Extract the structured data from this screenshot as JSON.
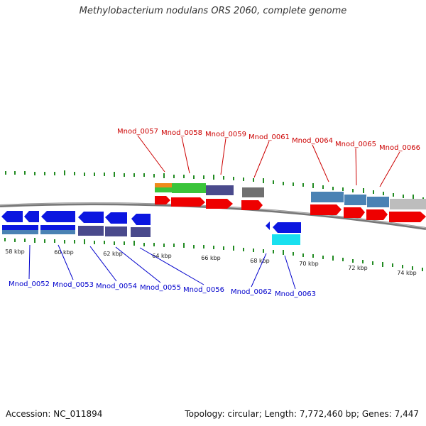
{
  "title": "Methylobacterium nodulans ORS 2060, complete genome",
  "accession_label": "Accession: NC_011894",
  "topology_label": "Topology: circular; Length: 7,772,460 bp; Genes: 7,447",
  "colors": {
    "label_top": "#cc0000",
    "label_bottom": "#0000cc",
    "backbone": "#888888",
    "tick": "#228b22"
  },
  "kbp_labels": [
    "58 kbp",
    "60 kbp",
    "62 kbp",
    "64 kbp",
    "66 kbp",
    "68 kbp",
    "70 kbp",
    "72 kbp",
    "74 kbp"
  ],
  "top_gene_labels": [
    "Mnod_0057",
    "Mnod_0058",
    "Mnod_0059",
    "Mnod_0061",
    "Mnod_0064",
    "Mnod_0065",
    "Mnod_0066"
  ],
  "bottom_gene_labels": [
    "Mnod_0052",
    "Mnod_0053",
    "Mnod_0054",
    "Mnod_0055",
    "Mnod_0056",
    "Mnod_0062",
    "Mnod_0063"
  ]
}
